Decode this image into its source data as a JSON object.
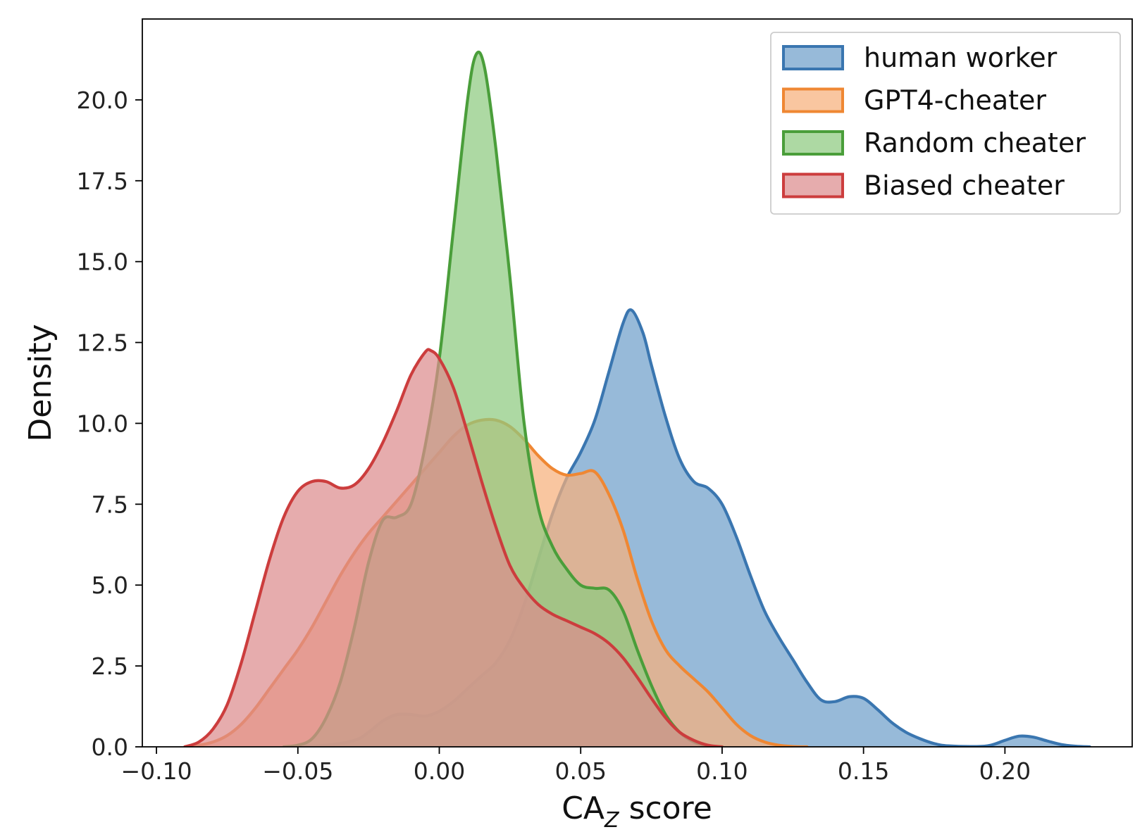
{
  "chart_data": {
    "type": "area",
    "title": "",
    "xlabel_main": "CA",
    "xlabel_sub": "Z",
    "xlabel_rest": " score",
    "ylabel": "Density",
    "xlim": [
      -0.105,
      0.245
    ],
    "ylim": [
      0,
      22.5
    ],
    "xticks": [
      {
        "value": -0.1,
        "label": "−0.10"
      },
      {
        "value": -0.05,
        "label": "−0.05"
      },
      {
        "value": 0.0,
        "label": "0.00"
      },
      {
        "value": 0.05,
        "label": "0.05"
      },
      {
        "value": 0.1,
        "label": "0.10"
      },
      {
        "value": 0.15,
        "label": "0.15"
      },
      {
        "value": 0.2,
        "label": "0.20"
      }
    ],
    "yticks": [
      {
        "value": 0,
        "label": "0.0"
      },
      {
        "value": 2.5,
        "label": "2.5"
      },
      {
        "value": 5,
        "label": "5.0"
      },
      {
        "value": 7.5,
        "label": "7.5"
      },
      {
        "value": 10,
        "label": "10.0"
      },
      {
        "value": 12.5,
        "label": "12.5"
      },
      {
        "value": 15,
        "label": "15.0"
      },
      {
        "value": 17.5,
        "label": "17.5"
      },
      {
        "value": 20,
        "label": "20.0"
      }
    ],
    "legend_position": "top-right",
    "series": [
      {
        "name": "human worker",
        "color": "#3a76b0",
        "fill": "#6f9fcb",
        "points": [
          [
            -0.055,
            0
          ],
          [
            -0.04,
            0.05
          ],
          [
            -0.03,
            0.2
          ],
          [
            -0.025,
            0.45
          ],
          [
            -0.02,
            0.8
          ],
          [
            -0.015,
            1.0
          ],
          [
            -0.01,
            1.0
          ],
          [
            -0.005,
            0.95
          ],
          [
            0,
            1.1
          ],
          [
            0.005,
            1.4
          ],
          [
            0.01,
            1.8
          ],
          [
            0.015,
            2.2
          ],
          [
            0.02,
            2.6
          ],
          [
            0.025,
            3.3
          ],
          [
            0.03,
            4.4
          ],
          [
            0.035,
            5.8
          ],
          [
            0.04,
            7.2
          ],
          [
            0.045,
            8.3
          ],
          [
            0.05,
            9.1
          ],
          [
            0.055,
            10.1
          ],
          [
            0.06,
            11.6
          ],
          [
            0.065,
            13.1
          ],
          [
            0.068,
            13.5
          ],
          [
            0.072,
            12.8
          ],
          [
            0.075,
            11.8
          ],
          [
            0.08,
            10.2
          ],
          [
            0.085,
            8.9
          ],
          [
            0.09,
            8.2
          ],
          [
            0.095,
            8.0
          ],
          [
            0.1,
            7.5
          ],
          [
            0.105,
            6.5
          ],
          [
            0.11,
            5.3
          ],
          [
            0.115,
            4.2
          ],
          [
            0.12,
            3.4
          ],
          [
            0.125,
            2.7
          ],
          [
            0.13,
            2.0
          ],
          [
            0.135,
            1.45
          ],
          [
            0.14,
            1.4
          ],
          [
            0.145,
            1.55
          ],
          [
            0.15,
            1.5
          ],
          [
            0.155,
            1.15
          ],
          [
            0.16,
            0.75
          ],
          [
            0.165,
            0.45
          ],
          [
            0.17,
            0.25
          ],
          [
            0.175,
            0.1
          ],
          [
            0.18,
            0.03
          ],
          [
            0.19,
            0.01
          ],
          [
            0.195,
            0.05
          ],
          [
            0.2,
            0.2
          ],
          [
            0.205,
            0.33
          ],
          [
            0.21,
            0.3
          ],
          [
            0.215,
            0.18
          ],
          [
            0.22,
            0.07
          ],
          [
            0.225,
            0.02
          ],
          [
            0.23,
            0
          ]
        ]
      },
      {
        "name": "GPT4-cheater",
        "color": "#ef8733",
        "fill": "#f6b07b",
        "points": [
          [
            -0.09,
            0
          ],
          [
            -0.085,
            0.05
          ],
          [
            -0.08,
            0.15
          ],
          [
            -0.075,
            0.35
          ],
          [
            -0.07,
            0.7
          ],
          [
            -0.065,
            1.2
          ],
          [
            -0.06,
            1.8
          ],
          [
            -0.055,
            2.4
          ],
          [
            -0.05,
            3.0
          ],
          [
            -0.045,
            3.7
          ],
          [
            -0.04,
            4.5
          ],
          [
            -0.035,
            5.3
          ],
          [
            -0.03,
            6.0
          ],
          [
            -0.025,
            6.6
          ],
          [
            -0.02,
            7.1
          ],
          [
            -0.015,
            7.6
          ],
          [
            -0.01,
            8.1
          ],
          [
            -0.005,
            8.6
          ],
          [
            0,
            9.1
          ],
          [
            0.005,
            9.6
          ],
          [
            0.01,
            9.95
          ],
          [
            0.015,
            10.1
          ],
          [
            0.02,
            10.1
          ],
          [
            0.025,
            9.9
          ],
          [
            0.03,
            9.5
          ],
          [
            0.035,
            9.0
          ],
          [
            0.04,
            8.6
          ],
          [
            0.045,
            8.4
          ],
          [
            0.05,
            8.45
          ],
          [
            0.055,
            8.5
          ],
          [
            0.06,
            7.8
          ],
          [
            0.065,
            6.7
          ],
          [
            0.07,
            5.2
          ],
          [
            0.075,
            3.9
          ],
          [
            0.08,
            3.0
          ],
          [
            0.085,
            2.5
          ],
          [
            0.09,
            2.1
          ],
          [
            0.095,
            1.7
          ],
          [
            0.1,
            1.2
          ],
          [
            0.105,
            0.7
          ],
          [
            0.11,
            0.35
          ],
          [
            0.115,
            0.15
          ],
          [
            0.12,
            0.05
          ],
          [
            0.125,
            0.01
          ],
          [
            0.13,
            0
          ]
        ]
      },
      {
        "name": "Random cheater",
        "color": "#4a9e3a",
        "fill": "#8ecb7f",
        "points": [
          [
            -0.055,
            0
          ],
          [
            -0.05,
            0.05
          ],
          [
            -0.045,
            0.25
          ],
          [
            -0.04,
            0.9
          ],
          [
            -0.035,
            2.0
          ],
          [
            -0.03,
            3.7
          ],
          [
            -0.025,
            5.7
          ],
          [
            -0.02,
            7.0
          ],
          [
            -0.015,
            7.1
          ],
          [
            -0.01,
            7.5
          ],
          [
            -0.005,
            9.3
          ],
          [
            0,
            12.0
          ],
          [
            0.005,
            16.0
          ],
          [
            0.01,
            20.0
          ],
          [
            0.013,
            21.4
          ],
          [
            0.016,
            21.0
          ],
          [
            0.02,
            18.5
          ],
          [
            0.025,
            14.5
          ],
          [
            0.03,
            10.0
          ],
          [
            0.035,
            7.4
          ],
          [
            0.04,
            6.2
          ],
          [
            0.045,
            5.5
          ],
          [
            0.05,
            5.0
          ],
          [
            0.055,
            4.9
          ],
          [
            0.06,
            4.85
          ],
          [
            0.065,
            4.2
          ],
          [
            0.07,
            3.0
          ],
          [
            0.075,
            1.9
          ],
          [
            0.08,
            1.0
          ],
          [
            0.085,
            0.45
          ],
          [
            0.09,
            0.15
          ],
          [
            0.095,
            0.03
          ],
          [
            0.1,
            0
          ]
        ]
      },
      {
        "name": "Biased cheater",
        "color": "#cc3d3d",
        "fill": "#dd8c8e",
        "points": [
          [
            -0.09,
            0
          ],
          [
            -0.085,
            0.15
          ],
          [
            -0.08,
            0.55
          ],
          [
            -0.075,
            1.3
          ],
          [
            -0.07,
            2.6
          ],
          [
            -0.065,
            4.2
          ],
          [
            -0.06,
            5.8
          ],
          [
            -0.055,
            7.1
          ],
          [
            -0.05,
            7.9
          ],
          [
            -0.045,
            8.2
          ],
          [
            -0.04,
            8.2
          ],
          [
            -0.035,
            8.0
          ],
          [
            -0.03,
            8.1
          ],
          [
            -0.025,
            8.6
          ],
          [
            -0.02,
            9.4
          ],
          [
            -0.015,
            10.4
          ],
          [
            -0.01,
            11.5
          ],
          [
            -0.005,
            12.2
          ],
          [
            -0.003,
            12.25
          ],
          [
            0,
            12.0
          ],
          [
            0.005,
            11.1
          ],
          [
            0.01,
            9.7
          ],
          [
            0.015,
            8.2
          ],
          [
            0.02,
            6.8
          ],
          [
            0.025,
            5.6
          ],
          [
            0.03,
            4.9
          ],
          [
            0.035,
            4.4
          ],
          [
            0.04,
            4.1
          ],
          [
            0.045,
            3.9
          ],
          [
            0.05,
            3.7
          ],
          [
            0.055,
            3.5
          ],
          [
            0.06,
            3.2
          ],
          [
            0.065,
            2.75
          ],
          [
            0.07,
            2.15
          ],
          [
            0.075,
            1.5
          ],
          [
            0.08,
            0.9
          ],
          [
            0.085,
            0.45
          ],
          [
            0.09,
            0.2
          ],
          [
            0.095,
            0.05
          ],
          [
            0.1,
            0
          ]
        ]
      }
    ]
  }
}
